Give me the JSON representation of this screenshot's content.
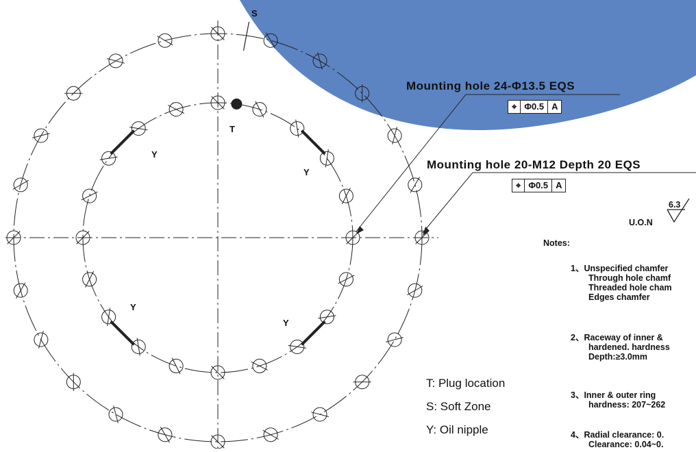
{
  "markers": {
    "S": "S",
    "T": "T",
    "Y": "Y"
  },
  "callouts": {
    "hole1": {
      "text": "Mounting hole 24-Φ13.5 EQS",
      "symbol": "⌖",
      "tolerance": "Φ0.5",
      "datum": "A"
    },
    "hole2": {
      "text": "Mounting hole 20-M12 Depth 20 EQS",
      "symbol": "⌖",
      "tolerance": "Φ0.5",
      "datum": "A"
    }
  },
  "roughness": {
    "value": "6.3",
    "uon": "U.O.N"
  },
  "legend": {
    "t": "T: Plug location",
    "s": "S: Soft Zone",
    "y": "Y: Oil nipple"
  },
  "notes": {
    "title": "Notes:",
    "n1": "1、Unspecified chamfer",
    "n1a": "Through hole chamf",
    "n1b": "Threaded hole cham",
    "n1c": "Edges chamfer",
    "n2": "2、Raceway of inner &",
    "n2a": "hardened. hardness",
    "n2b": "Depth:≥3.0mm",
    "n3": "3、Inner & outer ring",
    "n3a": "hardness: 207~262",
    "n4": "4、Radial clearance: 0.",
    "n4a": "Clearance: 0.04~0."
  },
  "colors": {
    "band": "#3f6fb8",
    "line": "#222222"
  }
}
